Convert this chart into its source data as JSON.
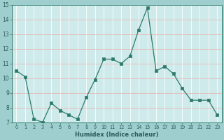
{
  "x": [
    0,
    1,
    2,
    3,
    4,
    5,
    6,
    7,
    8,
    9,
    10,
    11,
    12,
    13,
    14,
    15,
    16,
    17,
    18,
    19,
    20,
    21,
    22,
    23
  ],
  "y": [
    10.5,
    10.1,
    7.2,
    7.0,
    8.3,
    7.8,
    7.5,
    7.2,
    8.7,
    9.9,
    11.3,
    11.3,
    11.0,
    11.5,
    13.3,
    14.8,
    10.5,
    10.8,
    10.3,
    9.3,
    8.5,
    8.5,
    8.5,
    7.5
  ],
  "xlabel": "Humidex (Indice chaleur)",
  "ylim": [
    7,
    15
  ],
  "xlim": [
    -0.5,
    23.5
  ],
  "yticks": [
    7,
    8,
    9,
    10,
    11,
    12,
    13,
    14,
    15
  ],
  "xtick_labels": [
    "0",
    "1",
    "2",
    "3",
    "4",
    "5",
    "6",
    "7",
    "8",
    "9",
    "10",
    "11",
    "12",
    "13",
    "14",
    "15",
    "16",
    "17",
    "18",
    "19",
    "20",
    "21",
    "22",
    "23"
  ],
  "line_color": "#2d7a6a",
  "marker_color": "#2d7a6a",
  "bg_plot": "#ceeaea",
  "bg_fig": "#9ecece",
  "grid_v_color": "#ffffff",
  "grid_h_color": "#e8b8b8",
  "tick_color": "#2d5a5a",
  "xlabel_color": "#2d5a5a",
  "spine_color": "#2d7a6a"
}
